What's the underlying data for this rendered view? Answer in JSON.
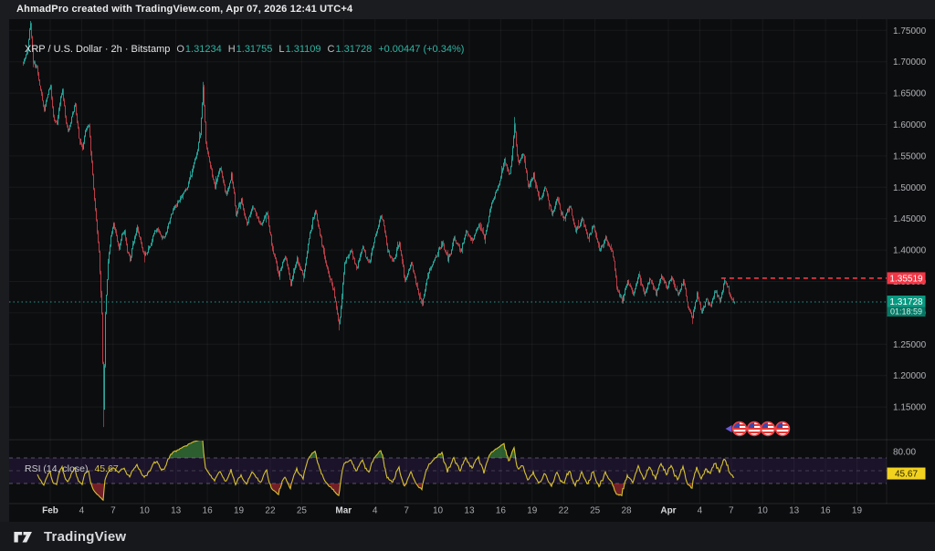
{
  "topbar": {
    "attribution": "AhmadPro created with TradingView.com, Apr 07, 2026 12:41 UTC+4"
  },
  "legend": {
    "title": "XRP / U.S. Dollar · 2h · Bitstamp",
    "o_label": "O",
    "o": "1.31234",
    "h_label": "H",
    "h": "1.31755",
    "l_label": "L",
    "l": "1.31109",
    "c_label": "C",
    "c": "1.31728",
    "change": "+0.00447 (+0.34%)"
  },
  "rsi_legend": {
    "title": "RSI (14, close)",
    "value": "45.67"
  },
  "price_axis": {
    "labels": [
      1.75,
      1.7,
      1.65,
      1.6,
      1.55,
      1.5,
      1.45,
      1.4,
      1.35,
      1.3,
      1.25,
      1.2,
      1.15
    ],
    "badge_high": {
      "text": "1.35519",
      "color": "#f23645"
    },
    "badge_last": {
      "price": "1.31728",
      "countdown": "01:18:59",
      "color": "#089981"
    }
  },
  "rsi_axis": {
    "top_label": "80.00",
    "badge": {
      "text": "45.67",
      "color": "#f2d21f"
    }
  },
  "time_axis": {
    "ticks": [
      {
        "label": "Feb",
        "day": 0,
        "month": true
      },
      {
        "label": "4",
        "day": 3
      },
      {
        "label": "7",
        "day": 6
      },
      {
        "label": "10",
        "day": 9
      },
      {
        "label": "13",
        "day": 12
      },
      {
        "label": "16",
        "day": 15
      },
      {
        "label": "19",
        "day": 18
      },
      {
        "label": "22",
        "day": 21
      },
      {
        "label": "25",
        "day": 24
      },
      {
        "label": "Mar",
        "day": 28,
        "month": true
      },
      {
        "label": "4",
        "day": 31
      },
      {
        "label": "7",
        "day": 34
      },
      {
        "label": "10",
        "day": 37
      },
      {
        "label": "13",
        "day": 40
      },
      {
        "label": "16",
        "day": 43
      },
      {
        "label": "19",
        "day": 46
      },
      {
        "label": "22",
        "day": 49
      },
      {
        "label": "25",
        "day": 52
      },
      {
        "label": "28",
        "day": 55
      },
      {
        "label": "Apr",
        "day": 59,
        "month": true
      },
      {
        "label": "4",
        "day": 62
      },
      {
        "label": "7",
        "day": 65
      },
      {
        "label": "10",
        "day": 68
      },
      {
        "label": "13",
        "day": 71
      },
      {
        "label": "16",
        "day": 74
      },
      {
        "label": "19",
        "day": 77
      }
    ]
  },
  "footer": {
    "brand": "TradingView"
  },
  "chart_data": {
    "type": "candlestick",
    "symbol": "XRP / U.S. Dollar",
    "interval": "2h",
    "exchange": "Bitstamp",
    "ohlc": {
      "open": 1.31234,
      "high": 1.31755,
      "low": 1.31109,
      "close": 1.31728
    },
    "change_abs": 0.00447,
    "change_pct": 0.34,
    "last_price": 1.31728,
    "high_line_price": 1.35519,
    "countdown": "01:18:59",
    "price_axis": {
      "min": 1.15,
      "max": 1.75,
      "step": 0.05
    },
    "time_axis_start": "Feb 1",
    "time_axis_end": "Apr 19",
    "colors": {
      "up": "#26a69a",
      "down": "#bb3e47",
      "last_line": "#26a69a",
      "high_line": "#f23645",
      "badge_last": "#089981",
      "badge_high": "#f23645",
      "badge_rsi": "#f2d21f",
      "rsi_line": "#d7c32f",
      "rsi_band": "rgba(103,58,183,0.16)",
      "rsi_overbought_fill": "#4caf50",
      "rsi_oversold_fill": "#f23645",
      "background": "#0c0d0f"
    },
    "price_path": [
      [
        -2.61,
        1.7
      ],
      [
        -2.18,
        1.72
      ],
      [
        -1.92,
        1.762
      ],
      [
        -1.66,
        1.7
      ],
      [
        -1.31,
        1.69
      ],
      [
        -0.96,
        1.655
      ],
      [
        -0.61,
        1.62
      ],
      [
        -0.26,
        1.65
      ],
      [
        0,
        1.66
      ],
      [
        0.26,
        1.61
      ],
      [
        0.61,
        1.6
      ],
      [
        0.87,
        1.635
      ],
      [
        1.13,
        1.655
      ],
      [
        1.48,
        1.6
      ],
      [
        1.74,
        1.59
      ],
      [
        2.09,
        1.62
      ],
      [
        2.35,
        1.63
      ],
      [
        2.7,
        1.58
      ],
      [
        3.05,
        1.56
      ],
      [
        3.31,
        1.59
      ],
      [
        3.66,
        1.6
      ],
      [
        3.92,
        1.54
      ],
      [
        4.18,
        1.48
      ],
      [
        4.45,
        1.43
      ],
      [
        4.62,
        1.4
      ],
      [
        4.88,
        1.3
      ],
      [
        5.06,
        1.14
      ],
      [
        5.23,
        1.3
      ],
      [
        5.49,
        1.38
      ],
      [
        5.75,
        1.42
      ],
      [
        6.01,
        1.445
      ],
      [
        6.28,
        1.42
      ],
      [
        6.54,
        1.4
      ],
      [
        6.8,
        1.425
      ],
      [
        7.06,
        1.43
      ],
      [
        7.32,
        1.4
      ],
      [
        7.58,
        1.385
      ],
      [
        7.93,
        1.415
      ],
      [
        8.28,
        1.435
      ],
      [
        8.63,
        1.41
      ],
      [
        8.98,
        1.39
      ],
      [
        9.33,
        1.4
      ],
      [
        9.59,
        1.41
      ],
      [
        9.94,
        1.43
      ],
      [
        10.2,
        1.435
      ],
      [
        10.55,
        1.42
      ],
      [
        10.89,
        1.42
      ],
      [
        11.24,
        1.44
      ],
      [
        11.59,
        1.46
      ],
      [
        11.94,
        1.47
      ],
      [
        12.29,
        1.48
      ],
      [
        12.64,
        1.49
      ],
      [
        13.07,
        1.5
      ],
      [
        13.42,
        1.52
      ],
      [
        13.77,
        1.545
      ],
      [
        14.03,
        1.56
      ],
      [
        14.3,
        1.585
      ],
      [
        14.56,
        1.66
      ],
      [
        14.82,
        1.57
      ],
      [
        15.08,
        1.55
      ],
      [
        15.43,
        1.52
      ],
      [
        15.69,
        1.5
      ],
      [
        15.95,
        1.52
      ],
      [
        16.21,
        1.53
      ],
      [
        16.47,
        1.51
      ],
      [
        16.73,
        1.49
      ],
      [
        17.0,
        1.5
      ],
      [
        17.26,
        1.52
      ],
      [
        17.52,
        1.49
      ],
      [
        17.69,
        1.455
      ],
      [
        17.95,
        1.47
      ],
      [
        18.22,
        1.48
      ],
      [
        18.48,
        1.46
      ],
      [
        18.74,
        1.44
      ],
      [
        19.09,
        1.46
      ],
      [
        19.35,
        1.47
      ],
      [
        19.7,
        1.455
      ],
      [
        20.05,
        1.44
      ],
      [
        20.31,
        1.45
      ],
      [
        20.66,
        1.46
      ],
      [
        20.92,
        1.43
      ],
      [
        21.18,
        1.4
      ],
      [
        21.53,
        1.38
      ],
      [
        21.79,
        1.36
      ],
      [
        22.05,
        1.375
      ],
      [
        22.4,
        1.39
      ],
      [
        22.66,
        1.37
      ],
      [
        22.92,
        1.345
      ],
      [
        23.27,
        1.37
      ],
      [
        23.53,
        1.385
      ],
      [
        23.8,
        1.37
      ],
      [
        24.14,
        1.36
      ],
      [
        24.41,
        1.39
      ],
      [
        24.67,
        1.42
      ],
      [
        25.02,
        1.45
      ],
      [
        25.28,
        1.465
      ],
      [
        25.54,
        1.44
      ],
      [
        25.89,
        1.41
      ],
      [
        26.15,
        1.39
      ],
      [
        26.41,
        1.37
      ],
      [
        26.76,
        1.35
      ],
      [
        27.02,
        1.335
      ],
      [
        27.28,
        1.31
      ],
      [
        27.55,
        1.278
      ],
      [
        27.81,
        1.33
      ],
      [
        28.07,
        1.38
      ],
      [
        28.33,
        1.39
      ],
      [
        28.68,
        1.4
      ],
      [
        28.94,
        1.385
      ],
      [
        29.2,
        1.37
      ],
      [
        29.55,
        1.39
      ],
      [
        29.81,
        1.405
      ],
      [
        30.07,
        1.39
      ],
      [
        30.42,
        1.38
      ],
      [
        30.68,
        1.4
      ],
      [
        30.94,
        1.42
      ],
      [
        31.29,
        1.44
      ],
      [
        31.56,
        1.455
      ],
      [
        31.82,
        1.44
      ],
      [
        32.16,
        1.4
      ],
      [
        32.42,
        1.39
      ],
      [
        32.69,
        1.38
      ],
      [
        33.03,
        1.4
      ],
      [
        33.3,
        1.41
      ],
      [
        33.56,
        1.38
      ],
      [
        33.82,
        1.35
      ],
      [
        34.17,
        1.365
      ],
      [
        34.43,
        1.38
      ],
      [
        34.69,
        1.36
      ],
      [
        34.95,
        1.34
      ],
      [
        35.21,
        1.325
      ],
      [
        35.47,
        1.315
      ],
      [
        35.82,
        1.345
      ],
      [
        36.17,
        1.37
      ],
      [
        36.52,
        1.38
      ],
      [
        36.78,
        1.39
      ],
      [
        37.04,
        1.4
      ],
      [
        37.39,
        1.41
      ],
      [
        37.65,
        1.4
      ],
      [
        37.91,
        1.385
      ],
      [
        38.26,
        1.4
      ],
      [
        38.53,
        1.42
      ],
      [
        38.79,
        1.41
      ],
      [
        39.13,
        1.4
      ],
      [
        39.4,
        1.415
      ],
      [
        39.66,
        1.43
      ],
      [
        40.01,
        1.42
      ],
      [
        40.27,
        1.415
      ],
      [
        40.53,
        1.43
      ],
      [
        40.88,
        1.44
      ],
      [
        41.14,
        1.43
      ],
      [
        41.4,
        1.42
      ],
      [
        41.75,
        1.445
      ],
      [
        42.01,
        1.47
      ],
      [
        42.36,
        1.485
      ],
      [
        42.71,
        1.5
      ],
      [
        42.97,
        1.515
      ],
      [
        43.32,
        1.545
      ],
      [
        43.58,
        1.53
      ],
      [
        43.84,
        1.52
      ],
      [
        44.01,
        1.545
      ],
      [
        44.28,
        1.6
      ],
      [
        44.54,
        1.55
      ],
      [
        44.71,
        1.54
      ],
      [
        44.97,
        1.55
      ],
      [
        45.15,
        1.55
      ],
      [
        45.41,
        1.52
      ],
      [
        45.58,
        1.5
      ],
      [
        45.84,
        1.51
      ],
      [
        46.11,
        1.52
      ],
      [
        46.37,
        1.5
      ],
      [
        46.63,
        1.48
      ],
      [
        46.98,
        1.49
      ],
      [
        47.24,
        1.5
      ],
      [
        47.5,
        1.48
      ],
      [
        47.85,
        1.46
      ],
      [
        48.11,
        1.47
      ],
      [
        48.37,
        1.48
      ],
      [
        48.72,
        1.46
      ],
      [
        48.98,
        1.45
      ],
      [
        49.24,
        1.46
      ],
      [
        49.59,
        1.47
      ],
      [
        49.86,
        1.45
      ],
      [
        50.12,
        1.43
      ],
      [
        50.47,
        1.44
      ],
      [
        50.73,
        1.45
      ],
      [
        50.99,
        1.435
      ],
      [
        51.25,
        1.42
      ],
      [
        51.6,
        1.43
      ],
      [
        51.86,
        1.44
      ],
      [
        52.12,
        1.42
      ],
      [
        52.38,
        1.4
      ],
      [
        52.73,
        1.41
      ],
      [
        52.99,
        1.42
      ],
      [
        53.25,
        1.41
      ],
      [
        53.6,
        1.4
      ],
      [
        53.86,
        1.37
      ],
      [
        54.04,
        1.34
      ],
      [
        54.3,
        1.33
      ],
      [
        54.56,
        1.32
      ],
      [
        54.82,
        1.335
      ],
      [
        55.08,
        1.35
      ],
      [
        55.34,
        1.34
      ],
      [
        55.6,
        1.33
      ],
      [
        55.87,
        1.345
      ],
      [
        56.13,
        1.36
      ],
      [
        56.39,
        1.345
      ],
      [
        56.65,
        1.33
      ],
      [
        56.91,
        1.34
      ],
      [
        57.17,
        1.355
      ],
      [
        57.43,
        1.345
      ],
      [
        57.78,
        1.33
      ],
      [
        58.04,
        1.345
      ],
      [
        58.3,
        1.36
      ],
      [
        58.57,
        1.35
      ],
      [
        58.83,
        1.34
      ],
      [
        59.09,
        1.35
      ],
      [
        59.35,
        1.355
      ],
      [
        59.61,
        1.34
      ],
      [
        59.87,
        1.33
      ],
      [
        60.13,
        1.34
      ],
      [
        60.39,
        1.35
      ],
      [
        60.65,
        1.33
      ],
      [
        60.83,
        1.31
      ],
      [
        61.09,
        1.3
      ],
      [
        61.26,
        1.292
      ],
      [
        61.52,
        1.315
      ],
      [
        61.7,
        1.33
      ],
      [
        61.96,
        1.315
      ],
      [
        62.13,
        1.3
      ],
      [
        62.39,
        1.31
      ],
      [
        62.57,
        1.32
      ],
      [
        62.83,
        1.315
      ],
      [
        63.0,
        1.31
      ],
      [
        63.27,
        1.325
      ],
      [
        63.44,
        1.335
      ],
      [
        63.7,
        1.325
      ],
      [
        63.88,
        1.32
      ],
      [
        64.05,
        1.33
      ],
      [
        64.31,
        1.352
      ],
      [
        64.49,
        1.345
      ],
      [
        64.66,
        1.34
      ],
      [
        64.83,
        1.33
      ],
      [
        65.01,
        1.322
      ],
      [
        65.18,
        1.318
      ],
      [
        65.27,
        1.317
      ]
    ],
    "wick_events": [
      {
        "day": -1.92,
        "price": 1.765,
        "dir": "high"
      },
      {
        "day": 5.06,
        "price": 1.118,
        "dir": "low"
      },
      {
        "day": 14.56,
        "price": 1.668,
        "dir": "high"
      },
      {
        "day": 27.55,
        "price": 1.272,
        "dir": "low"
      },
      {
        "day": 44.28,
        "price": 1.612,
        "dir": "high"
      },
      {
        "day": 61.26,
        "price": 1.282,
        "dir": "low"
      },
      {
        "day": 64.31,
        "price": 1.3552,
        "dir": "high"
      }
    ],
    "rsi": {
      "period": 14,
      "source": "close",
      "value": 45.67,
      "overbought": 70,
      "middle": 50,
      "oversold": 30,
      "shown_top_label": 80
    },
    "event_markers": [
      {
        "type": "purple-flag",
        "day": 64.8
      },
      {
        "type": "us-flag",
        "day": 65.8
      },
      {
        "type": "us-flag",
        "day": 67.2
      },
      {
        "type": "us-flag",
        "day": 68.5
      },
      {
        "type": "us-flag",
        "day": 69.9
      }
    ]
  }
}
